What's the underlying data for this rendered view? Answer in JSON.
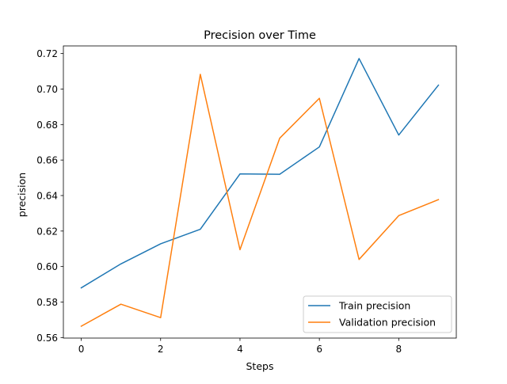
{
  "chart_data": {
    "type": "line",
    "title": "Precision over Time",
    "xlabel": "Steps",
    "ylabel": "precision",
    "x": [
      0,
      1,
      2,
      3,
      4,
      5,
      6,
      7,
      8,
      9
    ],
    "xlim": [
      -0.45,
      9.45
    ],
    "ylim": [
      0.5597,
      0.7243
    ],
    "xticks": [
      0,
      2,
      4,
      6,
      8
    ],
    "xtick_labels": [
      "0",
      "2",
      "4",
      "6",
      "8"
    ],
    "yticks": [
      0.56,
      0.58,
      0.6,
      0.62,
      0.64,
      0.66,
      0.68,
      0.7,
      0.72
    ],
    "ytick_labels": [
      "0.56",
      "0.58",
      "0.60",
      "0.62",
      "0.64",
      "0.66",
      "0.68",
      "0.70",
      "0.72"
    ],
    "grid": false,
    "legend_position": "lower right",
    "series": [
      {
        "name": "Train precision",
        "color": "#1f77b4",
        "values": [
          0.588,
          0.6015,
          0.6128,
          0.621,
          0.6522,
          0.652,
          0.6674,
          0.7172,
          0.6741,
          0.7022
        ]
      },
      {
        "name": "Validation precision",
        "color": "#ff7f0e",
        "values": [
          0.5664,
          0.5788,
          0.5712,
          0.7083,
          0.6095,
          0.6723,
          0.6948,
          0.604,
          0.6287,
          0.6377
        ]
      }
    ]
  }
}
